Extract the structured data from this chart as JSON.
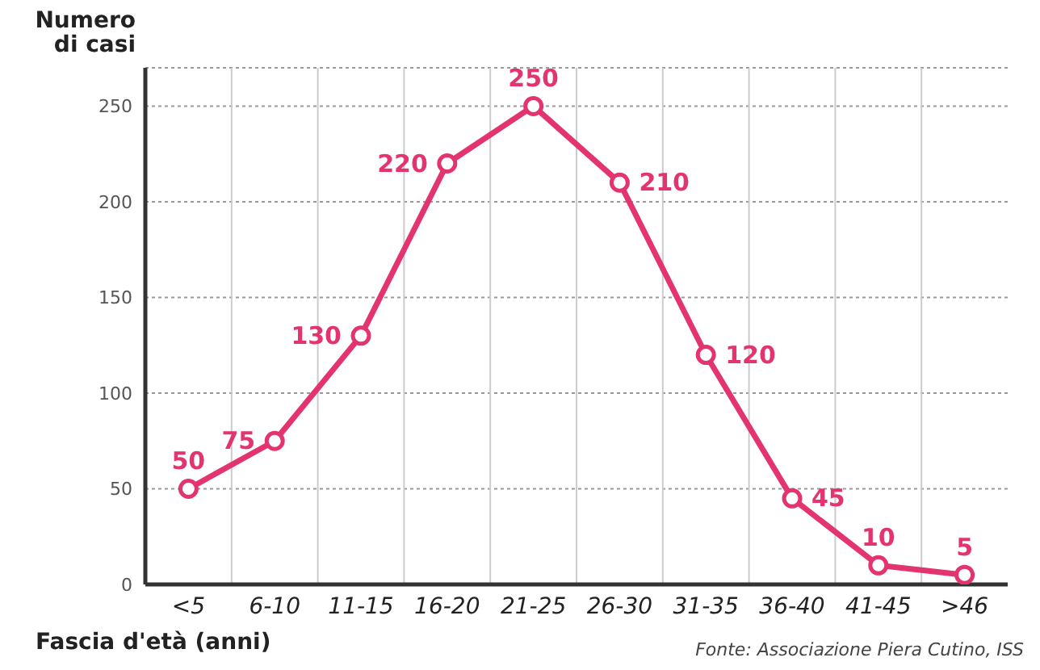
{
  "chart_data": {
    "type": "line",
    "ylabel": "Numero di casi",
    "xlabel": "Fascia d'età (anni)",
    "categories": [
      "<5",
      "6-10",
      "11-15",
      "16-20",
      "21-25",
      "26-30",
      "31-35",
      "36-40",
      "41-45",
      ">46"
    ],
    "series": [
      {
        "color": "#e3346f",
        "values": [
          50,
          75,
          130,
          220,
          250,
          210,
          120,
          45,
          10,
          5
        ]
      }
    ],
    "ylim": [
      0,
      270
    ],
    "yticks": [
      0,
      50,
      100,
      150,
      200,
      250
    ],
    "grid": true,
    "marker": "circle",
    "line_style": "solid",
    "data_labels": true,
    "annotations": [
      "Fonte: Associazione Piera Cutino, ISS"
    ]
  }
}
